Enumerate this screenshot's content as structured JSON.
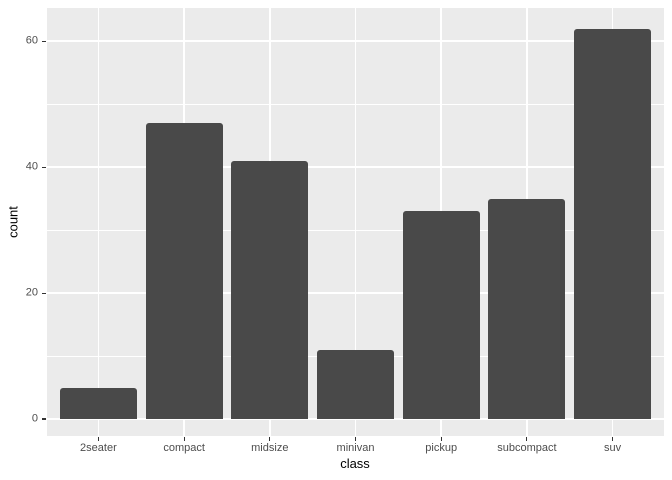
{
  "chart_data": {
    "type": "bar",
    "title": "",
    "xlabel": "class",
    "ylabel": "count",
    "categories": [
      "2seater",
      "compact",
      "midsize",
      "minivan",
      "pickup",
      "subcompact",
      "suv"
    ],
    "values": [
      5,
      47,
      41,
      11,
      33,
      35,
      62
    ],
    "yticks": [
      0,
      20,
      40,
      60
    ],
    "yticks_minor": [
      10,
      30,
      50
    ],
    "ylim": [
      -2.7,
      65.3
    ],
    "grid": "on",
    "legend_position": "none",
    "colors": {
      "bar_fill": "#494949",
      "panel_background": "#EBEBEB",
      "gridline": "#FFFFFF",
      "tick_mark": "#333333",
      "tick_label": "#4D4D4D",
      "axis_title": "#000000",
      "figure_background": "#FFFFFF"
    }
  }
}
